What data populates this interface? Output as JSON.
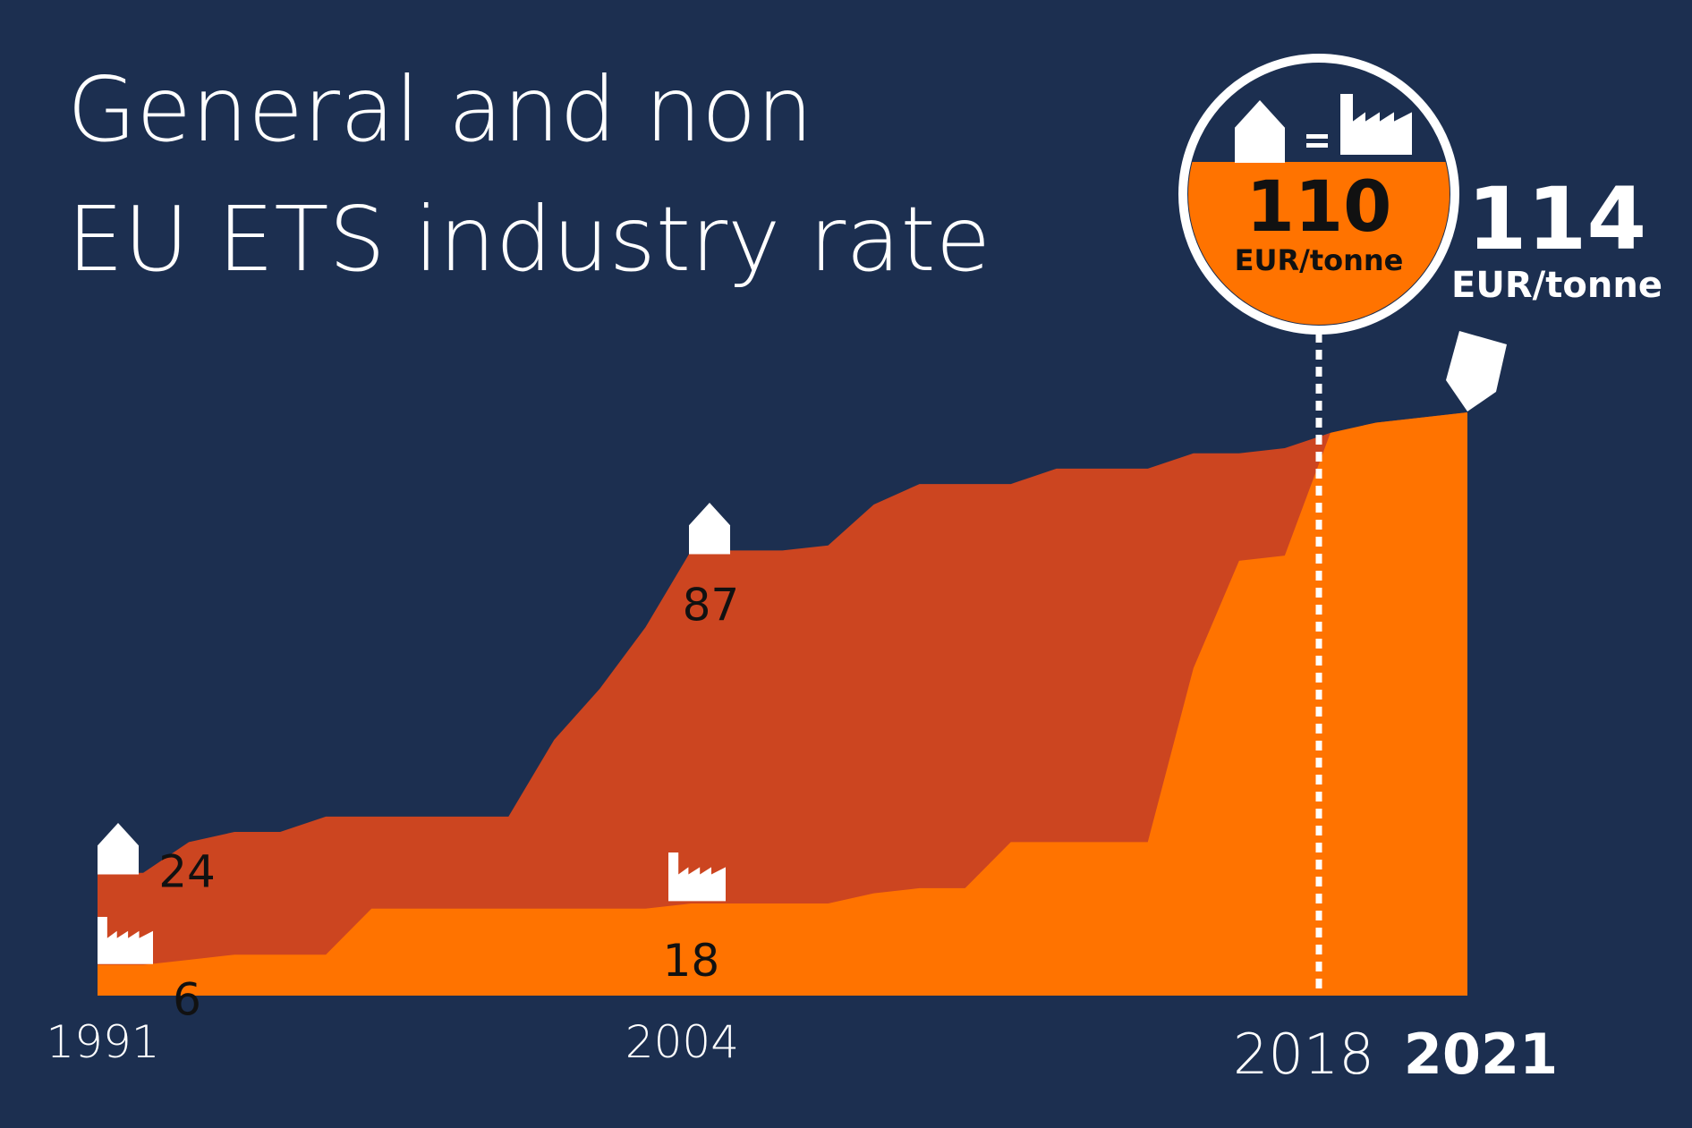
{
  "chart_data": {
    "type": "area",
    "title": [
      "General and non",
      "EU ETS industry rate"
    ],
    "unit": "EUR/tonne",
    "x": [
      1991,
      1992,
      1993,
      1994,
      1995,
      1996,
      1997,
      1998,
      1999,
      2000,
      2001,
      2002,
      2003,
      2004,
      2005,
      2006,
      2007,
      2008,
      2009,
      2010,
      2011,
      2012,
      2013,
      2014,
      2015,
      2016,
      2017,
      2018,
      2019,
      2020,
      2021
    ],
    "xlim": [
      1991,
      2021
    ],
    "xticks": [
      1991,
      2004,
      2018,
      2021
    ],
    "ylim": [
      0,
      114
    ],
    "series": [
      {
        "name": "General",
        "color": "#cc4520",
        "values": [
          24,
          24,
          30,
          32,
          32,
          35,
          35,
          35,
          35,
          35,
          50,
          60,
          72,
          87,
          87,
          87,
          88,
          96,
          100,
          100,
          100,
          103,
          103,
          103,
          106,
          106,
          107,
          110,
          112,
          113,
          114
        ],
        "value_labels": [
          "24",
          null,
          null,
          null,
          null,
          null,
          null,
          null,
          null,
          null,
          null,
          null,
          null,
          "87",
          null,
          null,
          null,
          null,
          null,
          null,
          null,
          null,
          null,
          null,
          null,
          null,
          null,
          "110",
          null,
          null,
          "114"
        ]
      },
      {
        "name": "Industry",
        "color": "#ff7300",
        "values": [
          6,
          6,
          7,
          8,
          8,
          8,
          17,
          17,
          17,
          17,
          17,
          17,
          17,
          18,
          18,
          18,
          18,
          20,
          21,
          21,
          30,
          30,
          30,
          30,
          64,
          85,
          86,
          110,
          112,
          113,
          114
        ],
        "value_labels": [
          "6",
          null,
          null,
          null,
          null,
          null,
          null,
          null,
          null,
          null,
          null,
          null,
          null,
          "18",
          null,
          null,
          null,
          null,
          null,
          null,
          null,
          null,
          null,
          null,
          null,
          null,
          null,
          null,
          null,
          null,
          null
        ]
      }
    ]
  }
}
